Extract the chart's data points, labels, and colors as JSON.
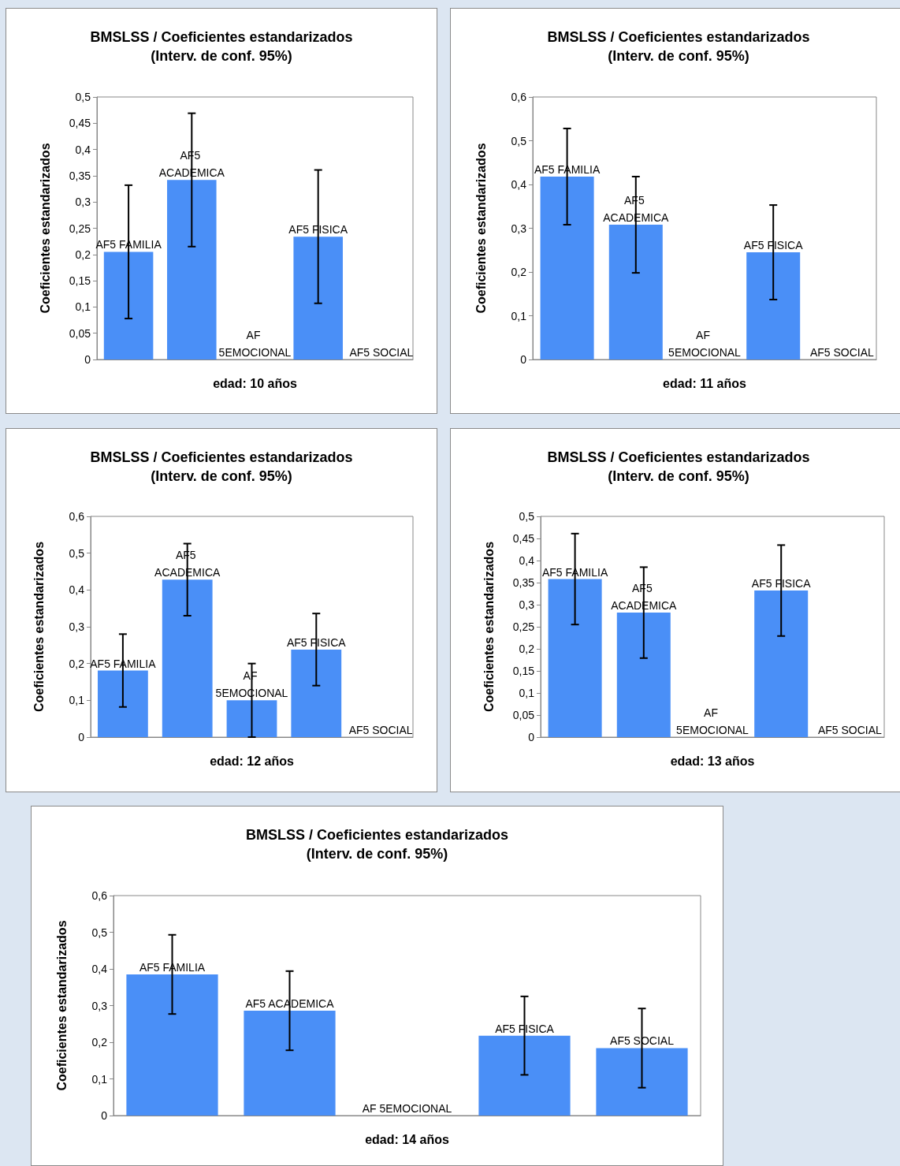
{
  "chart_data": [
    {
      "type": "bar",
      "title": "BMSLSS / Coeficientes estandarizados",
      "subtitle": "(Interv. de conf. 95%)",
      "xlabel": "edad: 10 años",
      "ylabel": "Coeficientes estandarizados",
      "categories": [
        "AF5 FAMILIA",
        "AF5 ACADEMICA",
        "AF 5EMOCIONAL",
        "AF5 FISICA",
        "AF5 SOCIAL"
      ],
      "values": [
        0.205,
        0.342,
        0,
        0.234,
        0
      ],
      "errors": [
        0.127,
        0.127,
        null,
        0.127,
        null
      ],
      "color": "#4a8ff7",
      "ylim": [
        0,
        0.5
      ],
      "yticks": [
        {
          "value": 0,
          "label": "0"
        },
        {
          "value": 0.05,
          "label": "0,05"
        },
        {
          "value": 0.1,
          "label": "0,1"
        },
        {
          "value": 0.15,
          "label": "0,15"
        },
        {
          "value": 0.2,
          "label": "0,2"
        },
        {
          "value": 0.25,
          "label": "0,25"
        },
        {
          "value": 0.3,
          "label": "0,3"
        },
        {
          "value": 0.35,
          "label": "0,35"
        },
        {
          "value": 0.4,
          "label": "0,4"
        },
        {
          "value": 0.45,
          "label": "0,45"
        },
        {
          "value": 0.5,
          "label": "0,5"
        }
      ],
      "tick_labels": "y"
    },
    {
      "type": "bar",
      "title": "BMSLSS / Coeficientes estandarizados",
      "subtitle": "(Interv. de conf. 95%)",
      "xlabel": "edad: 11 años",
      "ylabel": "Coeficientes estandarizados",
      "categories": [
        "AF5 FAMILIA",
        "AF5 ACADEMICA",
        "AF 5EMOCIONAL",
        "AF5 FISICA",
        "AF5 SOCIAL"
      ],
      "values": [
        0.418,
        0.308,
        0,
        0.245,
        0
      ],
      "errors": [
        0.11,
        0.11,
        null,
        0.108,
        null
      ],
      "color": "#4a8ff7",
      "ylim": [
        0,
        0.6
      ],
      "yticks": [
        {
          "value": 0,
          "label": "0"
        },
        {
          "value": 0.1,
          "label": "0,1"
        },
        {
          "value": 0.2,
          "label": "0,2"
        },
        {
          "value": 0.3,
          "label": "0,3"
        },
        {
          "value": 0.4,
          "label": "0,4"
        },
        {
          "value": 0.5,
          "label": "0,5"
        },
        {
          "value": 0.6,
          "label": "0,6"
        }
      ],
      "tick_labels": "y"
    },
    {
      "type": "bar",
      "title": "BMSLSS / Coeficientes estandarizados",
      "subtitle": "(Interv. de conf. 95%)",
      "xlabel": "edad: 12 años",
      "ylabel": "Coeficientes estandarizados",
      "categories": [
        "AF5 FAMILIA",
        "AF5 ACADEMICA",
        "AF 5EMOCIONAL",
        "AF5 FISICA",
        "AF5 SOCIAL"
      ],
      "values": [
        0.181,
        0.428,
        0.1,
        0.238,
        0
      ],
      "errors": [
        0.099,
        0.098,
        0.1,
        0.098,
        null
      ],
      "color": "#4a8ff7",
      "ylim": [
        0,
        0.6
      ],
      "yticks": [
        {
          "value": 0,
          "label": "0"
        },
        {
          "value": 0.1,
          "label": "0,1"
        },
        {
          "value": 0.2,
          "label": "0,2"
        },
        {
          "value": 0.3,
          "label": "0,3"
        },
        {
          "value": 0.4,
          "label": "0,4"
        },
        {
          "value": 0.5,
          "label": "0,5"
        },
        {
          "value": 0.6,
          "label": "0,6"
        }
      ],
      "tick_labels": "y"
    },
    {
      "type": "bar",
      "title": "BMSLSS / Coeficientes estandarizados",
      "subtitle": "(Interv. de conf. 95%)",
      "xlabel": "edad: 13 años",
      "ylabel": "Coeficientes estandarizados",
      "categories": [
        "AF5 FAMILIA",
        "AF5 ACADEMICA",
        "AF 5EMOCIONAL",
        "AF5 FISICA",
        "AF5 SOCIAL"
      ],
      "values": [
        0.358,
        0.282,
        0,
        0.332,
        0
      ],
      "errors": [
        0.103,
        0.103,
        null,
        0.103,
        null
      ],
      "color": "#4a8ff7",
      "ylim": [
        0,
        0.5
      ],
      "yticks": [
        {
          "value": 0,
          "label": "0"
        },
        {
          "value": 0.05,
          "label": "0,05"
        },
        {
          "value": 0.1,
          "label": "0,1"
        },
        {
          "value": 0.15,
          "label": "0,15"
        },
        {
          "value": 0.2,
          "label": "0,2"
        },
        {
          "value": 0.25,
          "label": "0,25"
        },
        {
          "value": 0.3,
          "label": "0,3"
        },
        {
          "value": 0.35,
          "label": "0,35"
        },
        {
          "value": 0.4,
          "label": "0,4"
        },
        {
          "value": 0.45,
          "label": "0,45"
        },
        {
          "value": 0.5,
          "label": "0,5"
        }
      ],
      "tick_labels": "y"
    },
    {
      "type": "bar",
      "title": "BMSLSS / Coeficientes estandarizados",
      "subtitle": "(Interv. de conf. 95%)",
      "xlabel": "edad: 14 años",
      "ylabel": "Coeficientes estandarizados",
      "categories": [
        "AF5 FAMILIA",
        "AF5 ACADEMICA",
        "AF 5EMOCIONAL",
        "AF5 FISICA",
        "AF5 SOCIAL"
      ],
      "values": [
        0.385,
        0.286,
        0,
        0.218,
        0.184
      ],
      "errors": [
        0.108,
        0.108,
        null,
        0.107,
        0.108
      ],
      "color": "#4a8ff7",
      "ylim": [
        0,
        0.6
      ],
      "yticks": [
        {
          "value": 0,
          "label": "0"
        },
        {
          "value": 0.1,
          "label": "0,1"
        },
        {
          "value": 0.2,
          "label": "0,2"
        },
        {
          "value": 0.3,
          "label": "0,3"
        },
        {
          "value": 0.4,
          "label": "0,4"
        },
        {
          "value": 0.5,
          "label": "0,5"
        },
        {
          "value": 0.6,
          "label": "0,6"
        }
      ],
      "tick_labels": "y"
    }
  ]
}
